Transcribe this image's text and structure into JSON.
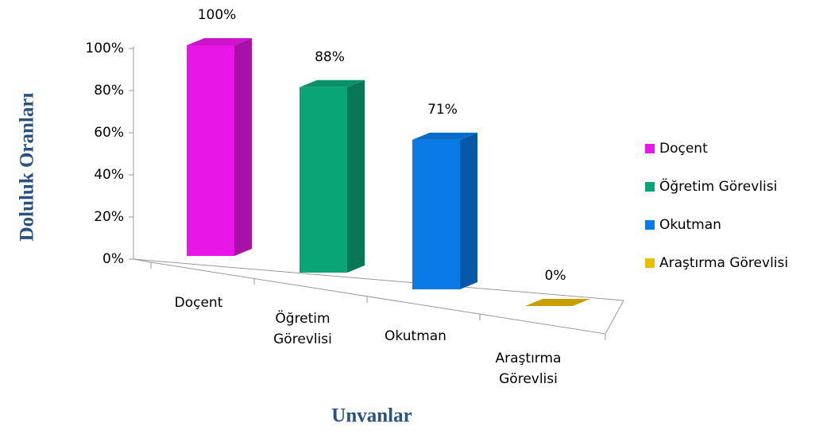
{
  "chart_data": {
    "type": "bar3d",
    "y_axis_label": "Doluluk Oranları",
    "x_axis_label": "Unvanlar",
    "categories": [
      "Doçent",
      "Öğretim Görevlisi",
      "Okutman",
      "Araştırma Görevlisi"
    ],
    "values": [
      100,
      88,
      71,
      0
    ],
    "value_labels": [
      "100%",
      "88%",
      "71%",
      "0%"
    ],
    "colors": [
      "#e817e8",
      "#0aa577",
      "#0a7ae6",
      "#e8bd00"
    ],
    "ylim": [
      0,
      100
    ],
    "yticks": [
      {
        "value": 0,
        "label": "0%"
      },
      {
        "value": 20,
        "label": "20%"
      },
      {
        "value": 40,
        "label": "40%"
      },
      {
        "value": 60,
        "label": "60%"
      },
      {
        "value": 80,
        "label": "80%"
      },
      {
        "value": 100,
        "label": "100%"
      }
    ],
    "legend": "right"
  }
}
